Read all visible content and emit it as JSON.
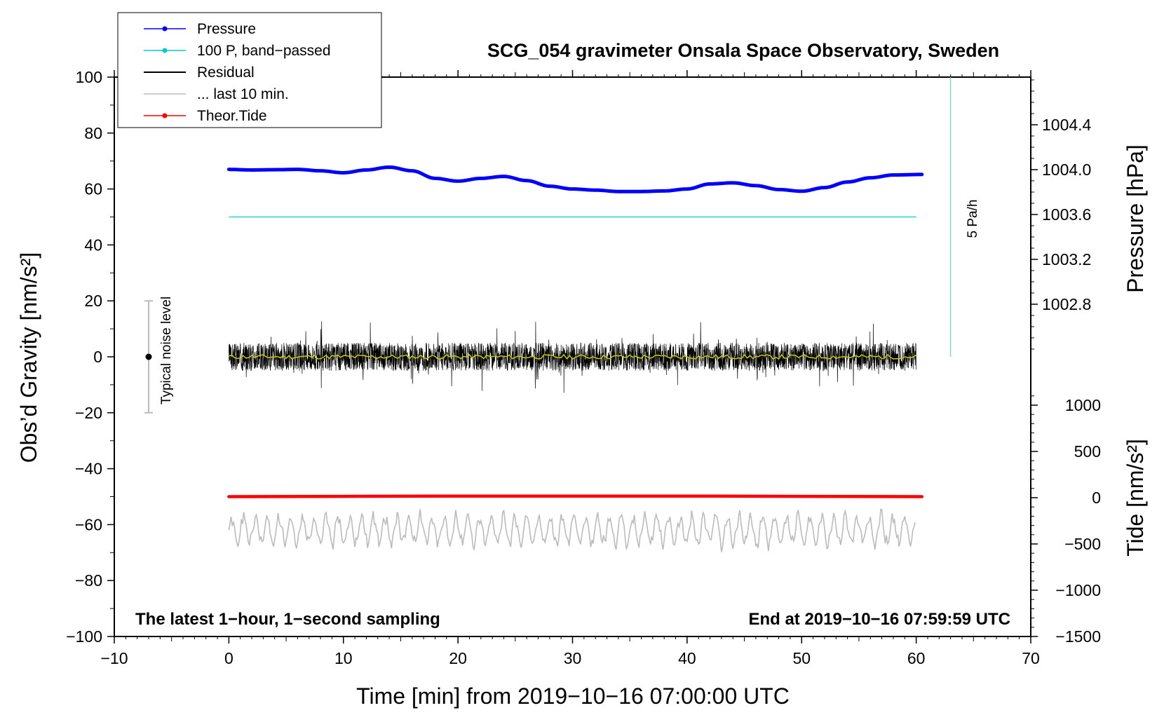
{
  "chart_data": {
    "type": "line",
    "title": "SCG_054 gravimeter Onsala Space Observatory, Sweden",
    "xlabel": "Time [min] from 2019−10−16 07:00:00 UTC",
    "ylabel_left": "Obs’d Gravity [nm/s²]",
    "ylabel_right_top": "Pressure [hPa]",
    "ylabel_right_bottom": "Tide [nm/s²]",
    "xlim": [
      -10,
      70
    ],
    "ylim": [
      -100,
      100
    ],
    "x_ticks": [
      "−10",
      "0",
      "10",
      "20",
      "30",
      "40",
      "50",
      "60",
      "70"
    ],
    "y_ticks": [
      "−100",
      "−80",
      "−60",
      "−40",
      "−20",
      "0",
      "20",
      "40",
      "60",
      "80",
      "100"
    ],
    "pressure_ticks": [
      "1002.8",
      "1003.2",
      "1003.6",
      "1004.0",
      "1004.4"
    ],
    "tide_ticks": [
      "−1500",
      "−1000",
      "−500",
      "0",
      "500",
      "1000"
    ],
    "note_left": "The latest 1−hour, 1−second sampling",
    "note_right": "End at 2019−10−16 07:59:59 UTC",
    "legend": {
      "placement": "top-left",
      "items": [
        {
          "label": "Pressure",
          "color": "#0000ff",
          "marker": true
        },
        {
          "label": "100 P, band−passed",
          "color": "#00cccc",
          "marker": true
        },
        {
          "label": "Residual",
          "color": "#000000",
          "marker": false
        },
        {
          "label": "... last 10 min.",
          "color": "#bbbbbb",
          "marker": false
        },
        {
          "label": "Theor.Tide",
          "color": "#ff0000",
          "marker": true
        }
      ]
    },
    "noise_bar": {
      "label": "Typical noise level",
      "x": -7,
      "center": 0,
      "half_range": 20
    },
    "rate_bar": {
      "label": "5 Pa/h",
      "x": 63,
      "y_from": 0,
      "y_to": 100
    },
    "series": [
      {
        "name": "Pressure",
        "color": "#0000ff",
        "axis": "gravity_units",
        "x": [
          0,
          2,
          4,
          6,
          8,
          10,
          12,
          14,
          16,
          18,
          20,
          22,
          24,
          26,
          28,
          30,
          32,
          34,
          36,
          38,
          40,
          42,
          44,
          46,
          48,
          50,
          52,
          54,
          56,
          58,
          60.5
        ],
        "values": [
          67.0,
          66.8,
          66.9,
          67.0,
          66.5,
          65.8,
          66.8,
          67.8,
          66.5,
          63.8,
          62.8,
          63.8,
          64.5,
          63.0,
          61.0,
          60.0,
          59.6,
          59.1,
          59.1,
          59.3,
          60.0,
          61.8,
          62.2,
          61.2,
          59.8,
          59.2,
          60.5,
          62.5,
          64.0,
          65.0,
          65.2
        ]
      },
      {
        "name": "100 P, band−passed",
        "color": "#00cccc",
        "x": [
          0,
          60
        ],
        "values": [
          50,
          50
        ]
      },
      {
        "name": "Residual",
        "color": "#000000",
        "x_range": [
          0,
          60
        ],
        "amplitude_typical": 5,
        "amplitude_max": 14
      },
      {
        "name": "... last 10 min.",
        "color": "#bbbbbb",
        "x_range": [
          0,
          60
        ],
        "center": -62,
        "amplitude": 7
      },
      {
        "name": "Theor.Tide",
        "color": "#ff0000",
        "x": [
          0,
          10,
          20,
          30,
          40,
          50,
          60.5
        ],
        "values": [
          -50,
          -49.9,
          -49.8,
          -49.8,
          -49.8,
          -49.9,
          -50
        ]
      }
    ]
  }
}
